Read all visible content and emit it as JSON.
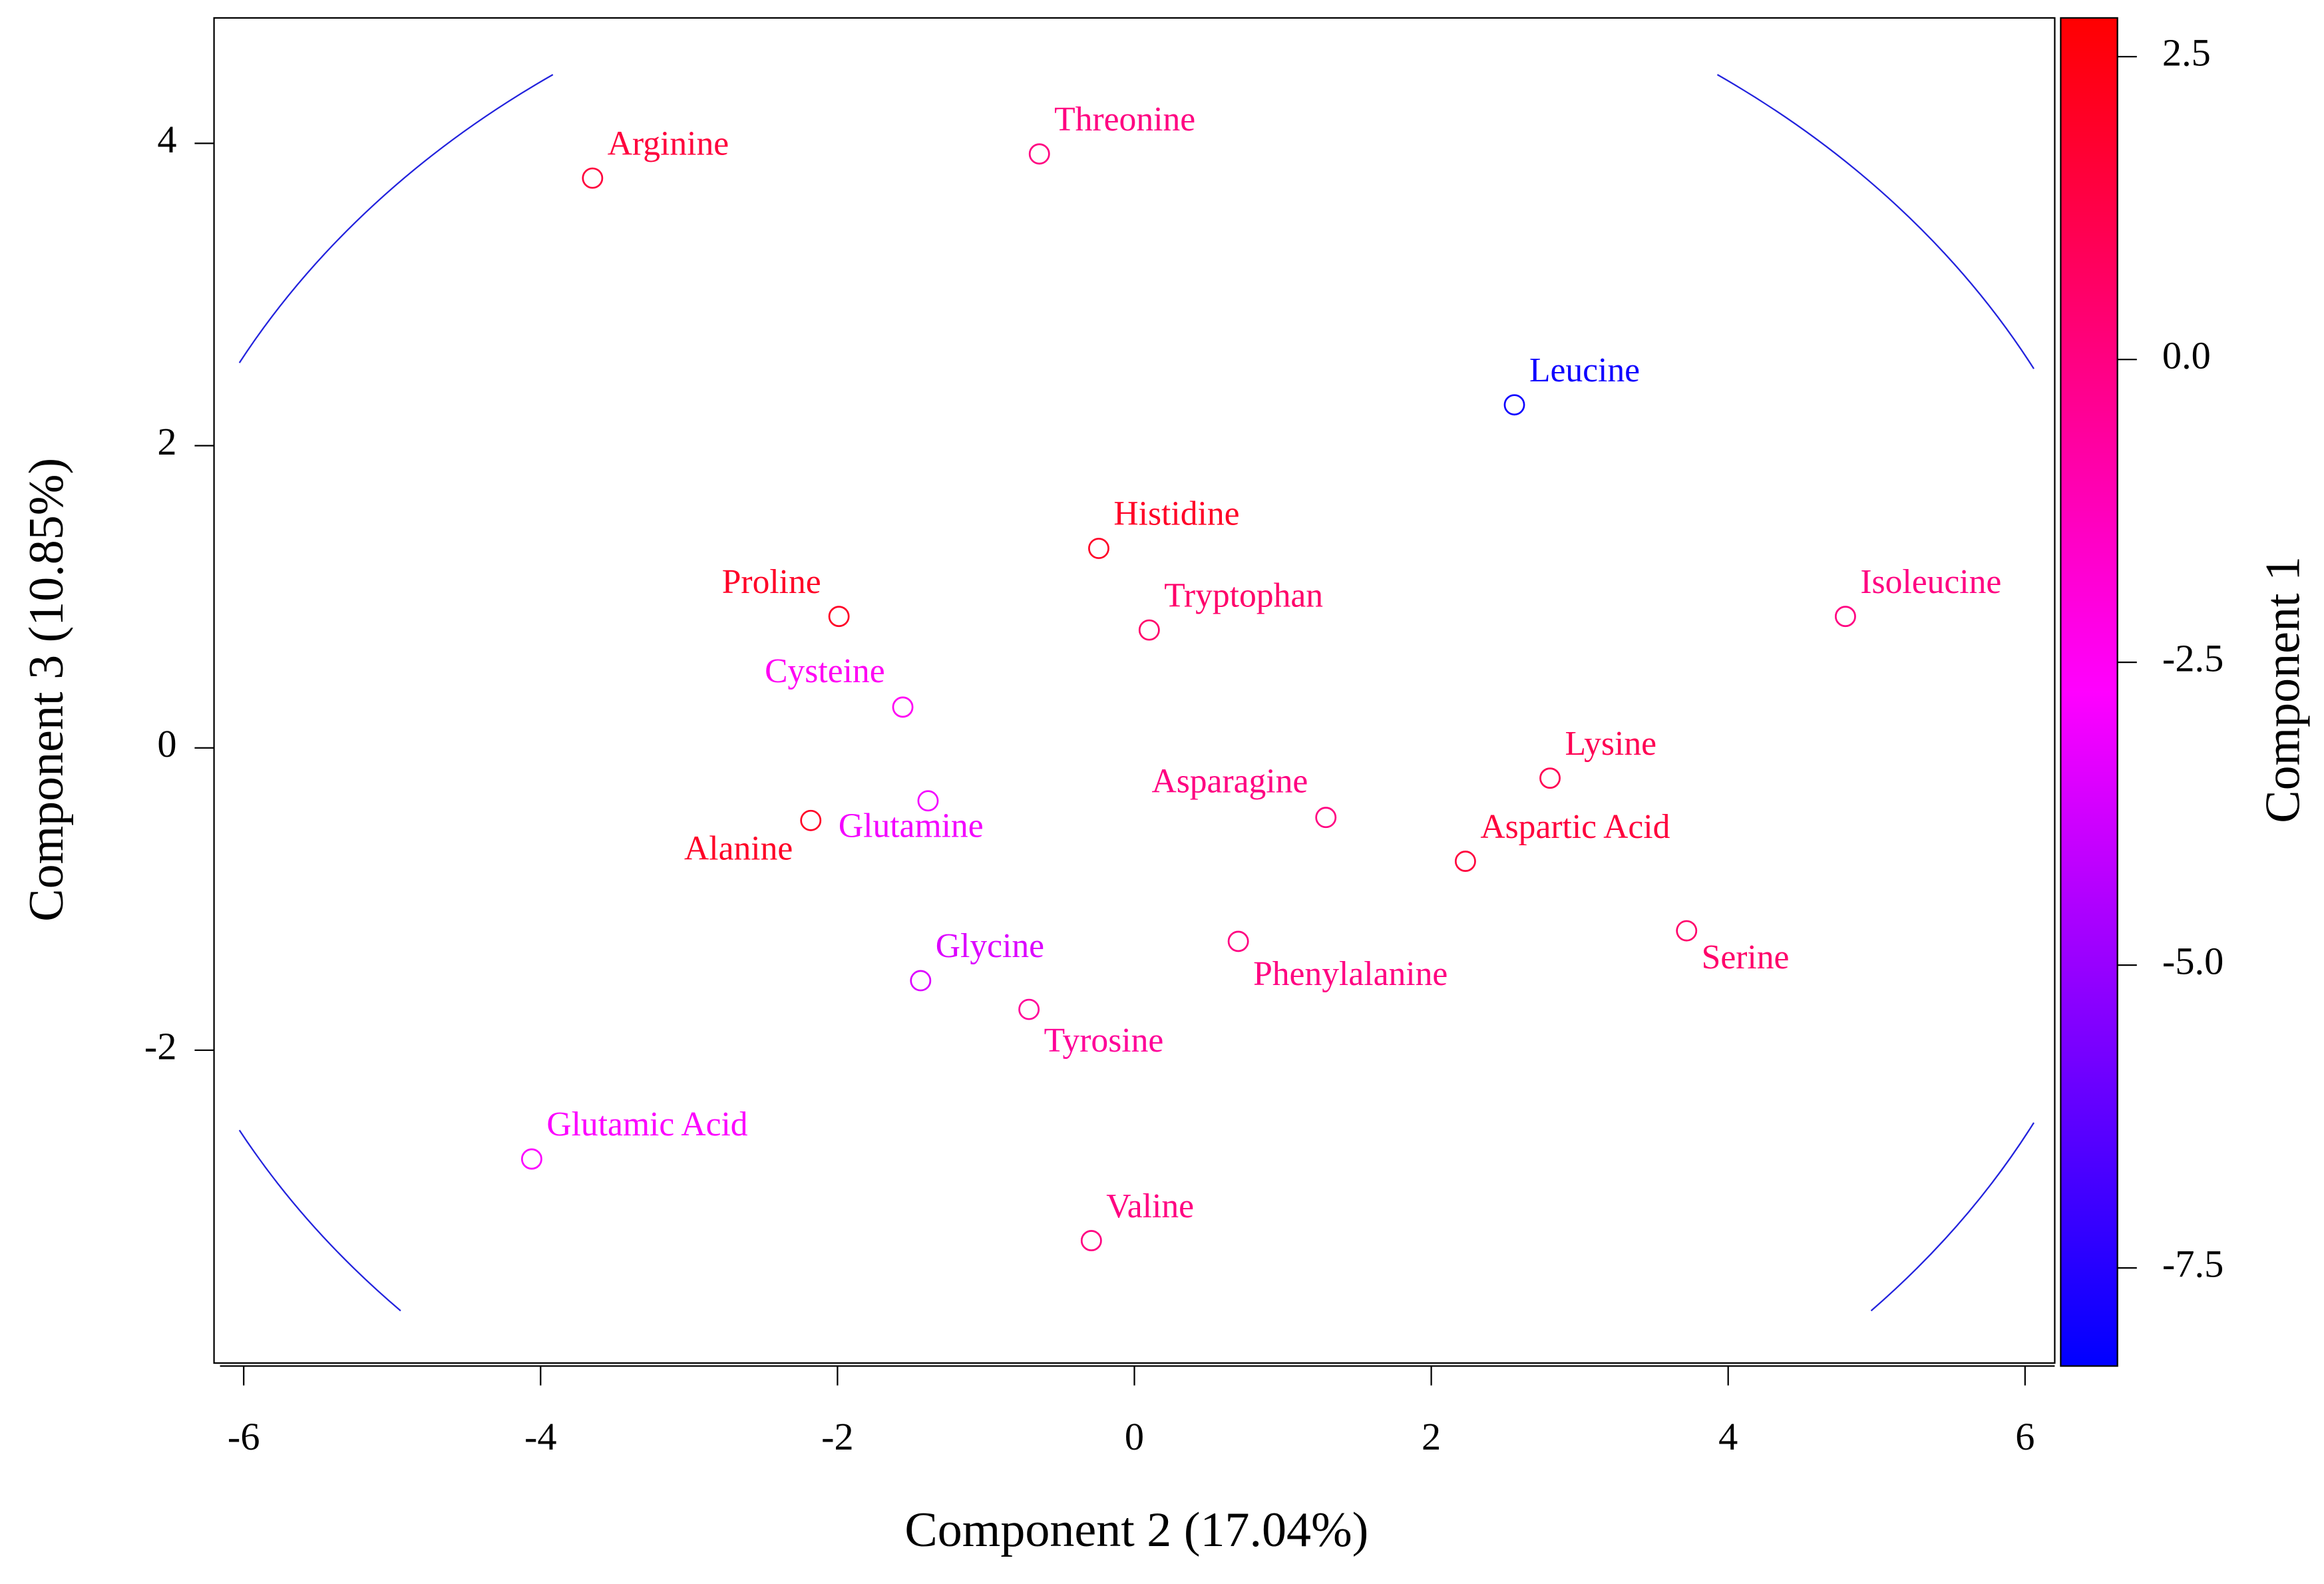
{
  "chart_data": {
    "type": "scatter",
    "xlabel": "Component 2 (17.04%)",
    "ylabel": "Component 3 (10.85%)",
    "colorbar_label": "Component 1",
    "labels": [
      "Arginine",
      "Threonine",
      "Leucine",
      "Histidine",
      "Tryptophan",
      "Isoleucine",
      "Proline",
      "Cysteine",
      "Lysine",
      "Asparagine",
      "Aspartic Acid",
      "Glutamine",
      "Alanine",
      "Serine",
      "Glycine",
      "Phenylalanine",
      "Tyrosine",
      "Glutamic Acid",
      "Valine"
    ],
    "x": [
      -3.65,
      -0.64,
      2.56,
      -0.24,
      0.1,
      4.79,
      -1.99,
      -1.56,
      2.8,
      1.29,
      2.23,
      -1.39,
      -2.18,
      3.72,
      -1.44,
      0.7,
      -0.71,
      -4.06,
      -0.29
    ],
    "values": [
      3.77,
      3.93,
      2.27,
      1.32,
      0.78,
      0.87,
      0.87,
      0.27,
      -0.2,
      -0.46,
      -0.75,
      -0.35,
      -0.48,
      -1.21,
      -1.54,
      -1.28,
      -1.73,
      -2.72,
      -3.26
    ],
    "color_values": [
      1.5,
      0.0,
      -8.0,
      2.0,
      0.5,
      0.0,
      2.0,
      -2.5,
      1.0,
      0.0,
      1.5,
      -3.0,
      2.0,
      0.5,
      -3.5,
      0.0,
      -0.5,
      -2.8,
      0.0
    ],
    "xlim": [
      -6.2,
      6.2
    ],
    "xticks": [
      -6,
      -4,
      -2,
      0,
      2,
      4,
      6
    ],
    "ylim": [
      -4.07,
      4.83
    ],
    "yticks": [
      -2,
      0,
      2,
      4
    ],
    "clim": [
      -8.31,
      2.82
    ],
    "cticks": [
      -7.5,
      {
        "value": -5.0,
        "label": "-5.0"
      },
      -2.5,
      {
        "value": 0.0,
        "label": "0.0"
      },
      2.5
    ],
    "colormap": [
      "#0000ff",
      "#ff00ff",
      "#ff0000"
    ]
  }
}
